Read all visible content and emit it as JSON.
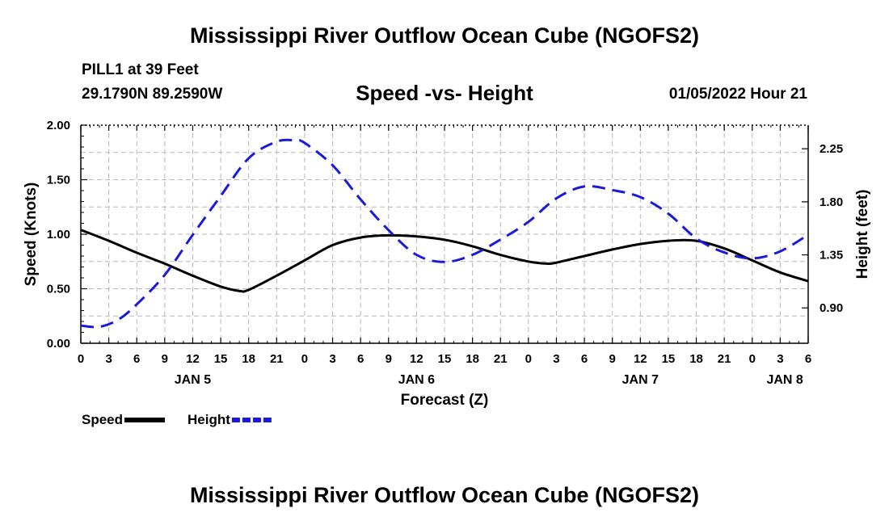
{
  "header": {
    "title": "Mississippi River Outflow Ocean Cube (NGOFS2)",
    "station": "PILL1 at 39 Feet",
    "coords": "29.1790N  89.2590W",
    "datetime": "01/05/2022 Hour 21",
    "footer_title": "Mississippi River Outflow Ocean Cube (NGOFS2)"
  },
  "chart_data": {
    "type": "line",
    "title": "Speed -vs- Height",
    "xlabel": "Forecast (Z)",
    "ylabel": "Speed (Knots)",
    "y2label": "Height (feet)",
    "x_unit": "forecast hour from Jan 5 00Z",
    "xlim": [
      0,
      78
    ],
    "ylim": [
      0,
      2.0
    ],
    "y2lim": [
      0.6,
      2.45
    ],
    "x_ticks": [
      0,
      3,
      6,
      9,
      12,
      15,
      18,
      21,
      24,
      27,
      30,
      33,
      36,
      39,
      42,
      45,
      48,
      51,
      54,
      57,
      60,
      63,
      66,
      69,
      72,
      75,
      78
    ],
    "x_tick_labels": [
      "0",
      "3",
      "6",
      "9",
      "12",
      "15",
      "18",
      "21",
      "0",
      "3",
      "6",
      "9",
      "12",
      "15",
      "18",
      "21",
      "0",
      "3",
      "6",
      "9",
      "12",
      "15",
      "18",
      "21",
      "0",
      "3",
      "6"
    ],
    "y_ticks": [
      0,
      0.5,
      1.0,
      1.5,
      2.0
    ],
    "y_tick_labels": [
      "0.00",
      "0.50",
      "1.00",
      "1.50",
      "2.00"
    ],
    "y2_ticks": [
      0.9,
      1.35,
      1.8,
      2.25
    ],
    "y2_tick_labels": [
      "0.90",
      "1.35",
      "1.80",
      "2.25"
    ],
    "day_labels": [
      {
        "x": 12,
        "label": "JAN 5"
      },
      {
        "x": 36,
        "label": "JAN 6"
      },
      {
        "x": 60,
        "label": "JAN 7"
      },
      {
        "x": 75.5,
        "label": "JAN 8"
      }
    ],
    "grid": true,
    "series": [
      {
        "name": "Speed",
        "axis": "left",
        "color": "#000000",
        "dash": "solid",
        "x": [
          0,
          3,
          6,
          9,
          12,
          15,
          17,
          18,
          21,
          24,
          27,
          30,
          33,
          36,
          39,
          42,
          45,
          48,
          50,
          51,
          54,
          57,
          60,
          63,
          66,
          69,
          72,
          75,
          78
        ],
        "values": [
          1.04,
          0.94,
          0.83,
          0.73,
          0.62,
          0.52,
          0.48,
          0.49,
          0.62,
          0.76,
          0.9,
          0.97,
          0.99,
          0.98,
          0.95,
          0.89,
          0.81,
          0.75,
          0.73,
          0.74,
          0.8,
          0.86,
          0.91,
          0.94,
          0.94,
          0.87,
          0.76,
          0.65,
          0.57
        ]
      },
      {
        "name": "Height",
        "axis": "right",
        "color": "#1a1adc",
        "dash": "dashed",
        "x": [
          0,
          2,
          4,
          6,
          9,
          12,
          15,
          18,
          21,
          23,
          24,
          27,
          30,
          33,
          36,
          39,
          42,
          45,
          48,
          51,
          54,
          57,
          60,
          63,
          66,
          69,
          72,
          75,
          78
        ],
        "values": [
          0.75,
          0.74,
          0.8,
          0.93,
          1.18,
          1.52,
          1.85,
          2.17,
          2.31,
          2.32,
          2.3,
          2.11,
          1.82,
          1.56,
          1.35,
          1.29,
          1.35,
          1.48,
          1.63,
          1.83,
          1.93,
          1.9,
          1.84,
          1.7,
          1.49,
          1.37,
          1.32,
          1.38,
          1.52
        ]
      }
    ],
    "legend": [
      {
        "label": "Speed",
        "color": "#000000",
        "dash": "solid"
      },
      {
        "label": "Height",
        "color": "#1a1adc",
        "dash": "dashed"
      }
    ]
  }
}
